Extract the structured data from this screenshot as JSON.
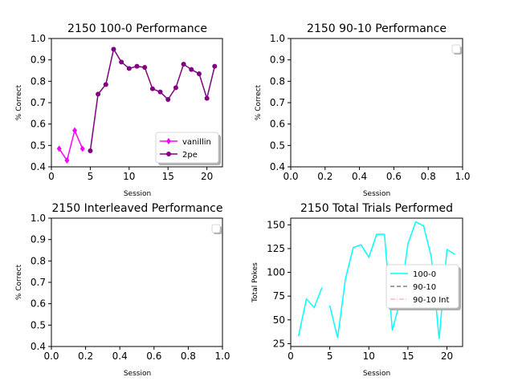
{
  "chart_data": [
    {
      "type": "line",
      "title": "2150 100-0 Performance",
      "xlabel": "Session",
      "ylabel": "% Correct",
      "xlim": [
        0,
        22
      ],
      "ylim": [
        0.4,
        1.0
      ],
      "xticks": [
        "0",
        "5",
        "10",
        "15",
        "20"
      ],
      "yticks": [
        "0.4",
        "0.5",
        "0.6",
        "0.7",
        "0.8",
        "0.9",
        "1.0"
      ],
      "legend_position": "lower-right",
      "series": [
        {
          "name": "vanillin",
          "color": "#ff00ff",
          "marker": "diamond",
          "x": [
            1,
            2,
            3,
            4
          ],
          "y": [
            0.485,
            0.43,
            0.57,
            0.485
          ]
        },
        {
          "name": "2pe",
          "color": "#800080",
          "marker": "circle",
          "x": [
            5,
            6,
            7,
            8,
            9,
            10,
            11,
            12,
            13,
            14,
            15,
            16,
            17,
            18,
            19,
            20,
            21
          ],
          "y": [
            0.475,
            0.74,
            0.785,
            0.95,
            0.89,
            0.86,
            0.87,
            0.865,
            0.765,
            0.75,
            0.715,
            0.77,
            0.88,
            0.855,
            0.835,
            0.72,
            0.87
          ]
        }
      ]
    },
    {
      "type": "line",
      "title": "2150 90-10 Performance",
      "xlabel": "Session",
      "ylabel": "% Correct",
      "xlim": [
        0,
        1
      ],
      "ylim": [
        0.4,
        1.0
      ],
      "xticks": [
        "0.0",
        "0.2",
        "0.4",
        "0.6",
        "0.8",
        "1.0"
      ],
      "yticks": [
        "0.4",
        "0.5",
        "0.6",
        "0.7",
        "0.8",
        "0.9",
        "1.0"
      ],
      "legend_position": "upper-right",
      "series": []
    },
    {
      "type": "line",
      "title": "2150 Interleaved Performance",
      "xlabel": "Session",
      "ylabel": "% Correct",
      "xlim": [
        0,
        1
      ],
      "ylim": [
        0.4,
        1.0
      ],
      "xticks": [
        "0.0",
        "0.2",
        "0.4",
        "0.6",
        "0.8",
        "1.0"
      ],
      "yticks": [
        "0.4",
        "0.5",
        "0.6",
        "0.7",
        "0.8",
        "0.9",
        "1.0"
      ],
      "legend_position": "upper-right",
      "series": []
    },
    {
      "type": "line",
      "title": "2150 Total Trials Performed",
      "xlabel": "Session",
      "ylabel": "Total Pokes",
      "xlim": [
        0,
        22
      ],
      "ylim": [
        22,
        157
      ],
      "xticks": [
        "0",
        "5",
        "10",
        "15",
        "20"
      ],
      "yticks": [
        "25",
        "50",
        "75",
        "100",
        "125",
        "150"
      ],
      "legend_position": "right",
      "series": [
        {
          "name": "100-0",
          "color": "#00ffff",
          "style": "solid",
          "segments": [
            {
              "x": [
                1,
                2,
                3,
                4
              ],
              "y": [
                33,
                72,
                63,
                84
              ]
            },
            {
              "x": [
                5,
                6,
                7,
                8,
                9,
                10,
                11,
                12,
                13,
                14,
                15,
                16,
                17,
                18,
                19,
                20,
                21
              ],
              "y": [
                65,
                31,
                93,
                126,
                129,
                116,
                140,
                140,
                39,
                70,
                130,
                153,
                149,
                116,
                30,
                124,
                119
              ]
            }
          ]
        },
        {
          "name": "90-10",
          "color": "#808080",
          "style": "dashed",
          "segments": []
        },
        {
          "name": "90-10 Int",
          "color": "#ffb6c1",
          "style": "dashdot",
          "segments": []
        }
      ]
    }
  ]
}
